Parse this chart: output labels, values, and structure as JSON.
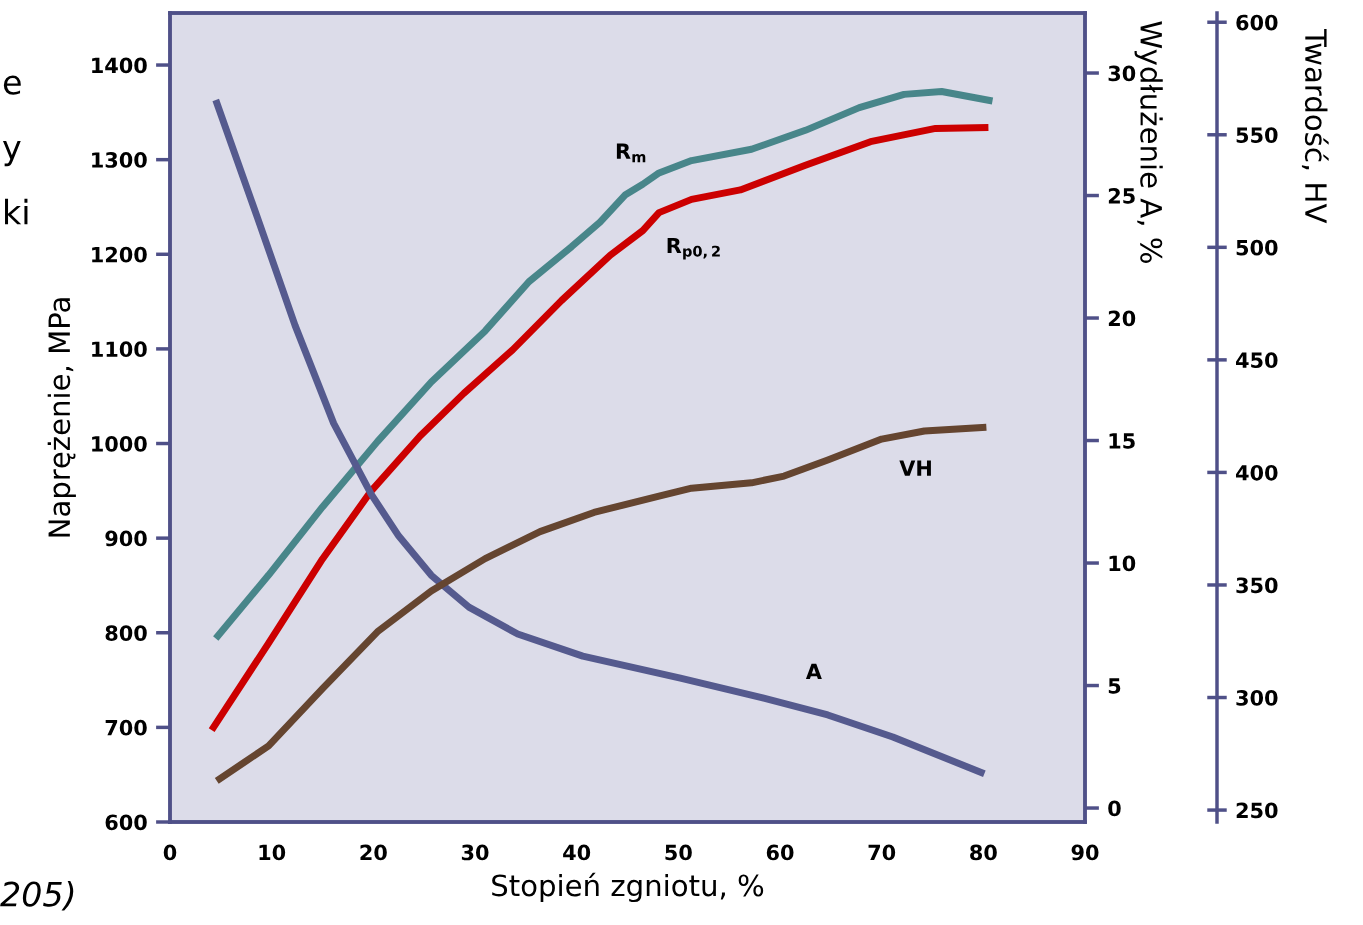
{
  "chart_data": {
    "type": "line",
    "xlabel": "Stopień zgniotu, %",
    "ylabel": "Naprężenie, MPa",
    "y2label": "Wydłużenie A, %",
    "y3label": "Twardość, HV",
    "xlim": [
      0,
      90
    ],
    "xticks": [
      0,
      10,
      20,
      30,
      40,
      50,
      60,
      70,
      80,
      90
    ],
    "ylim": [
      600,
      1455
    ],
    "yticks": [
      600,
      700,
      800,
      900,
      1000,
      1100,
      1200,
      1300,
      1400
    ],
    "y2lim": [
      -0.57,
      32.45
    ],
    "y2ticks": [
      0,
      5,
      10,
      15,
      20,
      25,
      30
    ],
    "y3lim": [
      244.7,
      604.1
    ],
    "y3ticks": [
      250,
      300,
      350,
      400,
      450,
      500,
      550,
      600
    ],
    "series": [
      {
        "name": "R$_{m}$",
        "color": "#48868a",
        "axis": "y",
        "x": [
          4.5,
          9.7,
          15.0,
          20.4,
          25.7,
          31.0,
          35.3,
          39.5,
          42.3,
          44.8,
          46.5,
          48.1,
          51.3,
          57.2,
          62.5,
          67.8,
          72.2,
          75.9,
          80.9
        ],
        "values": [
          794,
          861,
          933,
          1002,
          1065,
          1119,
          1171,
          1208,
          1234,
          1263,
          1274,
          1286,
          1299,
          1311,
          1331,
          1355,
          1369,
          1372,
          1362
        ]
      },
      {
        "name": "R$_{p0,2}$",
        "color": "#cc0000",
        "axis": "y",
        "x": [
          4.1,
          9.7,
          15.0,
          19.8,
          24.6,
          28.9,
          33.7,
          38.5,
          43.3,
          46.5,
          48.1,
          51.3,
          56.1,
          62.5,
          68.9,
          75.3,
          80.5
        ],
        "values": [
          697,
          789,
          878,
          950,
          1008,
          1053,
          1099,
          1151,
          1199,
          1225,
          1244,
          1258,
          1268,
          1294,
          1319,
          1333,
          1334
        ]
      },
      {
        "name": "VH",
        "color": "#654530",
        "axis": "y3",
        "x": [
          4.6,
          9.7,
          15.0,
          20.4,
          25.7,
          31.0,
          36.4,
          41.7,
          48.1,
          51.3,
          57.2,
          60.4,
          64.7,
          70.0,
          74.2,
          80.3
        ],
        "values": [
          263,
          278.5,
          303.9,
          329.2,
          347.3,
          361.7,
          373.7,
          382.2,
          389.5,
          393,
          395.4,
          398.4,
          405.5,
          414.8,
          418.4,
          420.1
        ]
      },
      {
        "name": "A",
        "color": "#555a8e",
        "axis": "y2",
        "x": [
          4.5,
          8.6,
          12.3,
          16.1,
          19.8,
          22.5,
          25.7,
          29.4,
          34.2,
          40.6,
          50.2,
          58.3,
          64.7,
          71.1,
          80.1
        ],
        "values": [
          28.9,
          24.1,
          19.7,
          15.7,
          12.8,
          11.1,
          9.5,
          8.2,
          7.1,
          6.2,
          5.3,
          4.5,
          3.8,
          2.9,
          1.4
        ]
      }
    ],
    "annotations": [
      "e",
      "y",
      "ki",
      "205)"
    ]
  }
}
